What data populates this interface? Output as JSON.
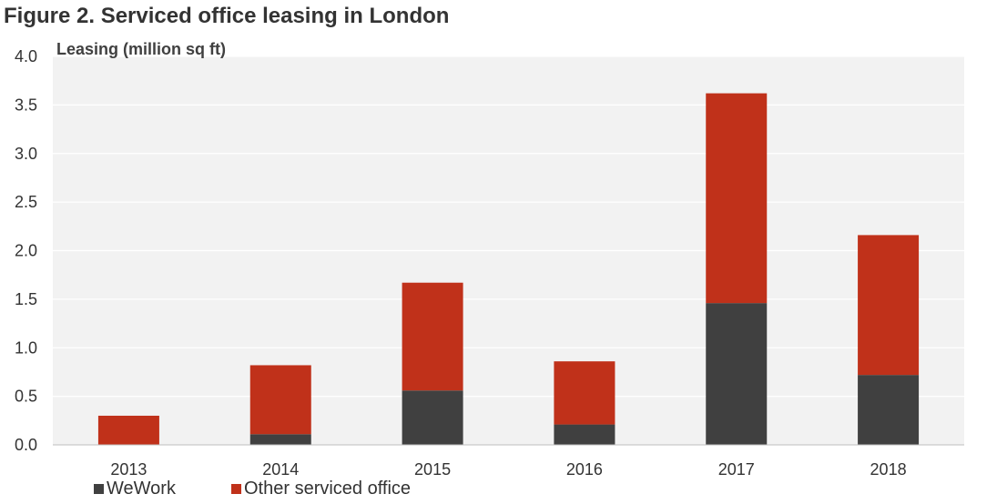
{
  "chart_data": {
    "type": "bar",
    "stacked": true,
    "title": "Figure 2. Serviced office leasing in London",
    "ylabel": "Leasing (million sq ft)",
    "xlabel": "",
    "categories": [
      "2013",
      "2014",
      "2015",
      "2016",
      "2017",
      "2018"
    ],
    "series": [
      {
        "name": "WeWork",
        "values": [
          0.0,
          0.11,
          0.56,
          0.21,
          1.46,
          0.72
        ],
        "color": "#404040"
      },
      {
        "name": "Other serviced office",
        "values": [
          0.3,
          0.71,
          1.11,
          0.65,
          2.16,
          1.44
        ],
        "color": "#C0311A"
      }
    ],
    "ylim": [
      0,
      4.0
    ],
    "yticks": [
      "0.0",
      "0.5",
      "1.0",
      "1.5",
      "2.0",
      "2.5",
      "3.0",
      "3.5",
      "4.0"
    ],
    "grid": true,
    "legend_position": "bottom-left",
    "plot_background": "#F2F2F2"
  }
}
